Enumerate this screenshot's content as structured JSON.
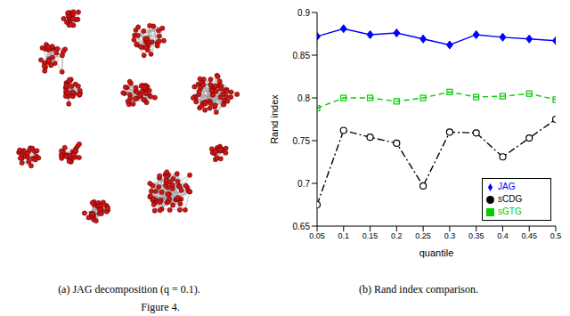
{
  "captions": [
    "(a) JAG decomposition (q = 0.1).",
    "(b) Rand index comparison."
  ],
  "figure_label": "Figure 4.",
  "chart_data": {
    "type": "line",
    "x_label": "quantile",
    "y_label": "Rand index",
    "x": [
      0.05,
      0.1,
      0.15,
      0.2,
      0.25,
      0.3,
      0.35,
      0.4,
      0.45,
      0.5
    ],
    "xlim": [
      0.05,
      0.5
    ],
    "xticks": [
      0.05,
      0.1,
      0.15,
      0.2,
      0.25,
      0.3,
      0.35,
      0.4,
      0.45,
      0.5
    ],
    "ylim": [
      0.65,
      0.9
    ],
    "yticks": [
      0.65,
      0.7,
      0.75,
      0.8,
      0.85,
      0.9
    ],
    "grid": false,
    "legend": "lower right",
    "series": [
      {
        "name": "JAG",
        "color": "#0000ff",
        "marker": "diamond",
        "line_style": "solid",
        "values": [
          0.872,
          0.881,
          0.874,
          0.876,
          0.869,
          0.862,
          0.874,
          0.871,
          0.869,
          0.867
        ]
      },
      {
        "name": "sGTG",
        "color": "#00cc00",
        "marker": "square",
        "line_style": "dashed",
        "values": [
          0.788,
          0.8,
          0.8,
          0.796,
          0.8,
          0.807,
          0.801,
          0.802,
          0.805,
          0.798
        ]
      },
      {
        "name": "sCDG",
        "color": "#000000",
        "marker": "circle",
        "line_style": "dashdot",
        "values": [
          0.675,
          0.762,
          0.754,
          0.747,
          0.697,
          0.76,
          0.759,
          0.731,
          0.753,
          0.775
        ]
      }
    ]
  }
}
